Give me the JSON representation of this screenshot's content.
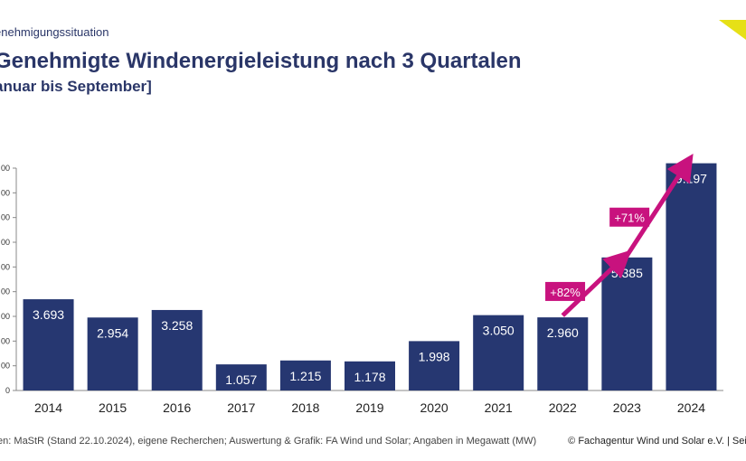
{
  "header": {
    "section": "enehmigungssituation",
    "title": "Genehmigte Windenergieleistung nach 3 Quartalen",
    "subtitle": "anuar bis September]"
  },
  "colors": {
    "bar": "#263771",
    "arrow": "#c8127e",
    "accent": "#e6e017",
    "text": "#2a3668"
  },
  "chart_data": {
    "type": "bar",
    "title": "Genehmigte Windenergieleistung nach 3 Quartalen",
    "categories": [
      "2014",
      "2015",
      "2016",
      "2017",
      "2018",
      "2019",
      "2020",
      "2021",
      "2022",
      "2023",
      "2024"
    ],
    "values": [
      3693,
      2954,
      3258,
      1057,
      1215,
      1178,
      1998,
      3050,
      2960,
      5385,
      9197
    ],
    "value_labels": [
      "3.693",
      "2.954",
      "3.258",
      "1.057",
      "1.215",
      "1.178",
      "1.998",
      "3.050",
      "2.960",
      "5.385",
      "9.197"
    ],
    "ylim": [
      0,
      9000
    ],
    "yticks": [
      0,
      1000,
      2000,
      3000,
      4000,
      5000,
      6000,
      7000,
      8000,
      9000
    ],
    "ytick_labels": [
      "0",
      "00",
      "00",
      "00",
      "00",
      "00",
      "00",
      "00",
      "00",
      "00"
    ],
    "ylabel": "",
    "xlabel": "",
    "unit": "MW",
    "annotations": [
      {
        "from": "2022",
        "to": "2023",
        "label": "+82%"
      },
      {
        "from": "2023",
        "to": "2024",
        "label": "+71%"
      }
    ]
  },
  "footer": {
    "source": "ten: MaStR (Stand 22.10.2024), eigene Recherchen; Auswertung & Grafik: FA Wind und Solar; Angaben in Megawatt (MW)",
    "copyright": "© Fachagentur Wind und Solar e.V. | Seite"
  }
}
